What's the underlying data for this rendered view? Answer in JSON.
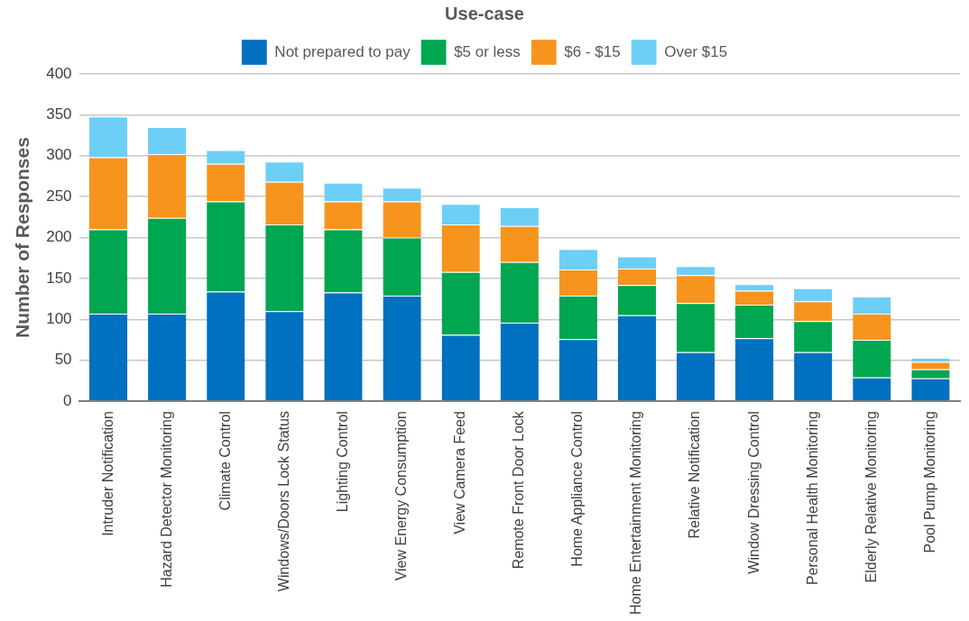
{
  "chart_data": {
    "type": "bar",
    "stacked": true,
    "ylabel": "Number of Responses",
    "legend_title": "Use-case",
    "legend": "top",
    "categories": [
      "Intruder Notification",
      "Hazard Detector Monitoring",
      "Climate Control",
      "Windows/Doors Lock Status",
      "Lighting Control",
      "View Energy Consumption",
      "View Camera Feed",
      "Remote Front Door Lock",
      "Home Appliance Control",
      "Home Entertainment Monitoring",
      "Relative Notification",
      "Window Dressing Control",
      "Personal Health Monitoring",
      "Elderly Relative Monitoring",
      "Pool Pump Monitoring"
    ],
    "series": [
      {
        "name": "Not prepared to pay",
        "color": "#0070c0",
        "values": [
          107,
          107,
          134,
          110,
          133,
          129,
          81,
          96,
          76,
          105,
          60,
          77,
          60,
          29,
          28
        ]
      },
      {
        "name": "$5 or less",
        "color": "#00a650",
        "values": [
          103,
          117,
          110,
          106,
          77,
          71,
          77,
          74,
          53,
          37,
          60,
          41,
          38,
          46,
          11
        ]
      },
      {
        "name": "$6 - $15",
        "color": "#f7941d",
        "values": [
          88,
          78,
          46,
          52,
          34,
          44,
          58,
          44,
          32,
          20,
          34,
          17,
          24,
          32,
          9
        ]
      },
      {
        "name": "Over $15",
        "color": "#6dcff6",
        "values": [
          50,
          33,
          17,
          25,
          23,
          17,
          25,
          23,
          25,
          15,
          11,
          8,
          16,
          21,
          5
        ]
      }
    ],
    "ylim": [
      0,
      400
    ],
    "yticks": [
      0,
      50,
      100,
      150,
      200,
      250,
      300,
      350,
      400
    ],
    "grid": "y"
  }
}
